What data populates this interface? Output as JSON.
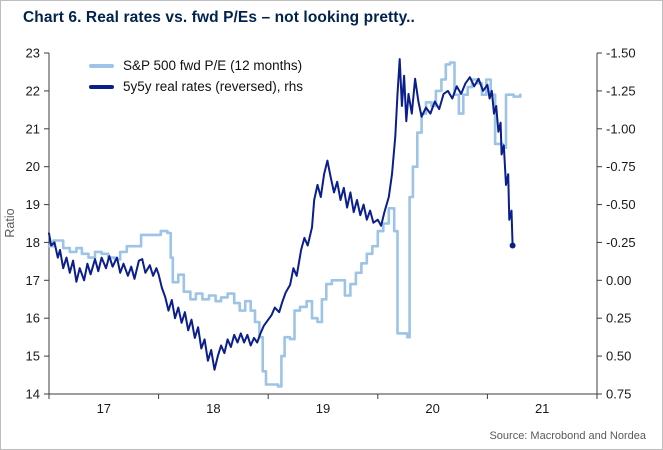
{
  "chart_data": {
    "type": "line",
    "title": "Chart 6. Real rates vs. fwd P/Es – not looking pretty..",
    "source": "Source: Macrobond and Nordea",
    "legend_position": "top-left",
    "grid": false,
    "x_axis": {
      "range": [
        2017,
        2022
      ],
      "tick_positions": [
        2017,
        2018,
        2019,
        2020,
        2021,
        2022
      ],
      "label_positions": [
        2017.5,
        2018.5,
        2019.5,
        2020.5,
        2021.5
      ],
      "labels": [
        "17",
        "18",
        "19",
        "20",
        "21"
      ]
    },
    "left_axis": {
      "label": "Ratio",
      "range": [
        14,
        23
      ],
      "tick_values": [
        23,
        22,
        21,
        20,
        19,
        18,
        17,
        16,
        15,
        14
      ],
      "tick_labels": [
        "23",
        "22",
        "21",
        "20",
        "19",
        "18",
        "17",
        "16",
        "15",
        "14"
      ]
    },
    "right_axis": {
      "reversed": true,
      "top_value": -1.5,
      "bottom_value": 0.75,
      "tick_values": [
        -1.5,
        -1.25,
        -1.0,
        -0.75,
        -0.5,
        -0.25,
        0.0,
        0.25,
        0.5,
        0.75
      ],
      "tick_labels": [
        "-1.50",
        "-1.25",
        "-1.00",
        "-0.75",
        "-0.50",
        "-0.25",
        "0.00",
        "0.25",
        "0.50",
        "0.75"
      ]
    },
    "series": [
      {
        "name": "S&P 500 fwd P/E (12 months)",
        "data_name": "spx-fwd-pe-line",
        "axis": "left",
        "color": "#9DC3E6",
        "line_width": 2.6,
        "step": true,
        "end_marker": false,
        "points": [
          [
            2017.0,
            17.9
          ],
          [
            2017.04,
            18.05
          ],
          [
            2017.1,
            18.05
          ],
          [
            2017.13,
            17.85
          ],
          [
            2017.19,
            17.75
          ],
          [
            2017.25,
            17.85
          ],
          [
            2017.3,
            17.7
          ],
          [
            2017.36,
            17.6
          ],
          [
            2017.42,
            17.75
          ],
          [
            2017.48,
            17.7
          ],
          [
            2017.54,
            17.6
          ],
          [
            2017.6,
            17.55
          ],
          [
            2017.65,
            17.75
          ],
          [
            2017.71,
            17.9
          ],
          [
            2017.79,
            17.9
          ],
          [
            2017.84,
            18.2
          ],
          [
            2017.96,
            18.2
          ],
          [
            2018.02,
            18.3
          ],
          [
            2018.08,
            18.25
          ],
          [
            2018.11,
            17.6
          ],
          [
            2018.13,
            16.95
          ],
          [
            2018.18,
            17.15
          ],
          [
            2018.23,
            16.7
          ],
          [
            2018.29,
            16.5
          ],
          [
            2018.34,
            16.65
          ],
          [
            2018.4,
            16.5
          ],
          [
            2018.46,
            16.6
          ],
          [
            2018.52,
            16.45
          ],
          [
            2018.57,
            16.55
          ],
          [
            2018.63,
            16.65
          ],
          [
            2018.69,
            16.4
          ],
          [
            2018.74,
            16.2
          ],
          [
            2018.79,
            16.45
          ],
          [
            2018.84,
            16.2
          ],
          [
            2018.88,
            15.9
          ],
          [
            2018.92,
            15.5
          ],
          [
            2018.95,
            14.6
          ],
          [
            2018.98,
            14.25
          ],
          [
            2019.09,
            14.2
          ],
          [
            2019.12,
            15.0
          ],
          [
            2019.15,
            15.5
          ],
          [
            2019.2,
            15.45
          ],
          [
            2019.24,
            16.2
          ],
          [
            2019.29,
            16.3
          ],
          [
            2019.35,
            16.45
          ],
          [
            2019.4,
            16.0
          ],
          [
            2019.45,
            15.9
          ],
          [
            2019.49,
            16.5
          ],
          [
            2019.53,
            16.9
          ],
          [
            2019.58,
            17.0
          ],
          [
            2019.66,
            17.0
          ],
          [
            2019.7,
            16.6
          ],
          [
            2019.75,
            16.9
          ],
          [
            2019.8,
            17.2
          ],
          [
            2019.85,
            17.45
          ],
          [
            2019.9,
            17.7
          ],
          [
            2019.95,
            17.9
          ],
          [
            2020.0,
            18.3
          ],
          [
            2020.05,
            18.5
          ],
          [
            2020.1,
            18.9
          ],
          [
            2020.15,
            18.3
          ],
          [
            2020.18,
            15.6
          ],
          [
            2020.27,
            15.5
          ],
          [
            2020.29,
            19.2
          ],
          [
            2020.32,
            20.0
          ],
          [
            2020.36,
            20.9
          ],
          [
            2020.4,
            21.4
          ],
          [
            2020.44,
            21.7
          ],
          [
            2020.49,
            21.6
          ],
          [
            2020.53,
            22.0
          ],
          [
            2020.58,
            22.3
          ],
          [
            2020.62,
            22.7
          ],
          [
            2020.66,
            22.75
          ],
          [
            2020.7,
            21.9
          ],
          [
            2020.74,
            21.4
          ],
          [
            2020.78,
            21.9
          ],
          [
            2020.82,
            22.1
          ],
          [
            2020.86,
            22.3
          ],
          [
            2020.91,
            22.2
          ],
          [
            2020.95,
            21.9
          ],
          [
            2020.99,
            22.3
          ],
          [
            2021.03,
            21.9
          ],
          [
            2021.07,
            20.6
          ],
          [
            2021.14,
            20.5
          ],
          [
            2021.17,
            21.9
          ],
          [
            2021.24,
            21.85
          ],
          [
            2021.3,
            21.9
          ]
        ]
      },
      {
        "name": "5y5y real rates (reversed), rhs",
        "data_name": "real-rates-line",
        "axis": "right",
        "color": "#0A1E8C",
        "line_width": 2,
        "step": false,
        "end_marker": true,
        "points": [
          [
            2017.0,
            -0.31
          ],
          [
            2017.02,
            -0.23
          ],
          [
            2017.05,
            -0.25
          ],
          [
            2017.08,
            -0.15
          ],
          [
            2017.1,
            -0.2
          ],
          [
            2017.13,
            -0.08
          ],
          [
            2017.16,
            -0.15
          ],
          [
            2017.19,
            -0.05
          ],
          [
            2017.22,
            -0.13
          ],
          [
            2017.25,
            0.01
          ],
          [
            2017.28,
            -0.08
          ],
          [
            2017.32,
            0.0
          ],
          [
            2017.35,
            -0.11
          ],
          [
            2017.38,
            -0.04
          ],
          [
            2017.42,
            -0.14
          ],
          [
            2017.45,
            -0.06
          ],
          [
            2017.48,
            -0.15
          ],
          [
            2017.52,
            -0.08
          ],
          [
            2017.55,
            -0.16
          ],
          [
            2017.58,
            -0.09
          ],
          [
            2017.62,
            -0.15
          ],
          [
            2017.65,
            -0.05
          ],
          [
            2017.68,
            -0.11
          ],
          [
            2017.72,
            -0.03
          ],
          [
            2017.75,
            -0.09
          ],
          [
            2017.78,
            -0.01
          ],
          [
            2017.82,
            -0.13
          ],
          [
            2017.85,
            -0.14
          ],
          [
            2017.88,
            -0.05
          ],
          [
            2017.92,
            -0.1
          ],
          [
            2017.95,
            -0.03
          ],
          [
            2017.98,
            -0.08
          ],
          [
            2018.0,
            -0.04
          ],
          [
            2018.03,
            0.05
          ],
          [
            2018.06,
            0.11
          ],
          [
            2018.09,
            0.2
          ],
          [
            2018.12,
            0.13
          ],
          [
            2018.15,
            0.25
          ],
          [
            2018.18,
            0.18
          ],
          [
            2018.21,
            0.28
          ],
          [
            2018.24,
            0.21
          ],
          [
            2018.27,
            0.33
          ],
          [
            2018.3,
            0.26
          ],
          [
            2018.33,
            0.38
          ],
          [
            2018.36,
            0.31
          ],
          [
            2018.39,
            0.45
          ],
          [
            2018.42,
            0.39
          ],
          [
            2018.45,
            0.53
          ],
          [
            2018.48,
            0.46
          ],
          [
            2018.51,
            0.59
          ],
          [
            2018.54,
            0.5
          ],
          [
            2018.57,
            0.43
          ],
          [
            2018.6,
            0.48
          ],
          [
            2018.63,
            0.39
          ],
          [
            2018.66,
            0.44
          ],
          [
            2018.69,
            0.36
          ],
          [
            2018.72,
            0.41
          ],
          [
            2018.75,
            0.35
          ],
          [
            2018.78,
            0.41
          ],
          [
            2018.81,
            0.36
          ],
          [
            2018.84,
            0.43
          ],
          [
            2018.87,
            0.38
          ],
          [
            2018.9,
            0.41
          ],
          [
            2018.93,
            0.35
          ],
          [
            2018.96,
            0.3
          ],
          [
            2019.0,
            0.26
          ],
          [
            2019.03,
            0.23
          ],
          [
            2019.06,
            0.18
          ],
          [
            2019.1,
            0.21
          ],
          [
            2019.13,
            0.14
          ],
          [
            2019.16,
            0.08
          ],
          [
            2019.2,
            0.03
          ],
          [
            2019.23,
            -0.08
          ],
          [
            2019.26,
            -0.03
          ],
          [
            2019.3,
            -0.2
          ],
          [
            2019.33,
            -0.28
          ],
          [
            2019.36,
            -0.23
          ],
          [
            2019.4,
            -0.35
          ],
          [
            2019.42,
            -0.53
          ],
          [
            2019.45,
            -0.63
          ],
          [
            2019.48,
            -0.55
          ],
          [
            2019.51,
            -0.7
          ],
          [
            2019.54,
            -0.79
          ],
          [
            2019.57,
            -0.68
          ],
          [
            2019.6,
            -0.58
          ],
          [
            2019.63,
            -0.65
          ],
          [
            2019.66,
            -0.53
          ],
          [
            2019.69,
            -0.61
          ],
          [
            2019.72,
            -0.48
          ],
          [
            2019.75,
            -0.58
          ],
          [
            2019.78,
            -0.45
          ],
          [
            2019.81,
            -0.53
          ],
          [
            2019.84,
            -0.43
          ],
          [
            2019.87,
            -0.5
          ],
          [
            2019.9,
            -0.4
          ],
          [
            2019.93,
            -0.46
          ],
          [
            2019.96,
            -0.38
          ],
          [
            2020.0,
            -0.4
          ],
          [
            2020.03,
            -0.36
          ],
          [
            2020.06,
            -0.45
          ],
          [
            2020.1,
            -0.55
          ],
          [
            2020.13,
            -0.7
          ],
          [
            2020.16,
            -0.95
          ],
          [
            2020.18,
            -1.23
          ],
          [
            2020.2,
            -1.46
          ],
          [
            2020.22,
            -1.15
          ],
          [
            2020.24,
            -1.35
          ],
          [
            2020.26,
            -1.05
          ],
          [
            2020.28,
            -1.23
          ],
          [
            2020.31,
            -1.1
          ],
          [
            2020.34,
            -1.33
          ],
          [
            2020.37,
            -1.18
          ],
          [
            2020.4,
            -1.08
          ],
          [
            2020.44,
            -1.14
          ],
          [
            2020.48,
            -1.1
          ],
          [
            2020.52,
            -1.18
          ],
          [
            2020.56,
            -1.13
          ],
          [
            2020.6,
            -1.23
          ],
          [
            2020.64,
            -1.25
          ],
          [
            2020.68,
            -1.2
          ],
          [
            2020.72,
            -1.28
          ],
          [
            2020.76,
            -1.23
          ],
          [
            2020.8,
            -1.3
          ],
          [
            2020.84,
            -1.34
          ],
          [
            2020.88,
            -1.28
          ],
          [
            2020.92,
            -1.33
          ],
          [
            2020.96,
            -1.25
          ],
          [
            2021.0,
            -1.29
          ],
          [
            2021.02,
            -1.2
          ],
          [
            2021.04,
            -1.25
          ],
          [
            2021.06,
            -1.1
          ],
          [
            2021.08,
            -1.15
          ],
          [
            2021.1,
            -0.98
          ],
          [
            2021.12,
            -1.04
          ],
          [
            2021.13,
            -0.83
          ],
          [
            2021.15,
            -0.89
          ],
          [
            2021.17,
            -0.63
          ],
          [
            2021.19,
            -0.7
          ],
          [
            2021.2,
            -0.4
          ],
          [
            2021.22,
            -0.46
          ],
          [
            2021.23,
            -0.23
          ]
        ]
      }
    ],
    "colors": {
      "light_blue": "#9DC3E6",
      "navy": "#0A1E8C",
      "title": "#00234e",
      "axis": "#3d3d3d",
      "muted_text": "#595959"
    }
  }
}
